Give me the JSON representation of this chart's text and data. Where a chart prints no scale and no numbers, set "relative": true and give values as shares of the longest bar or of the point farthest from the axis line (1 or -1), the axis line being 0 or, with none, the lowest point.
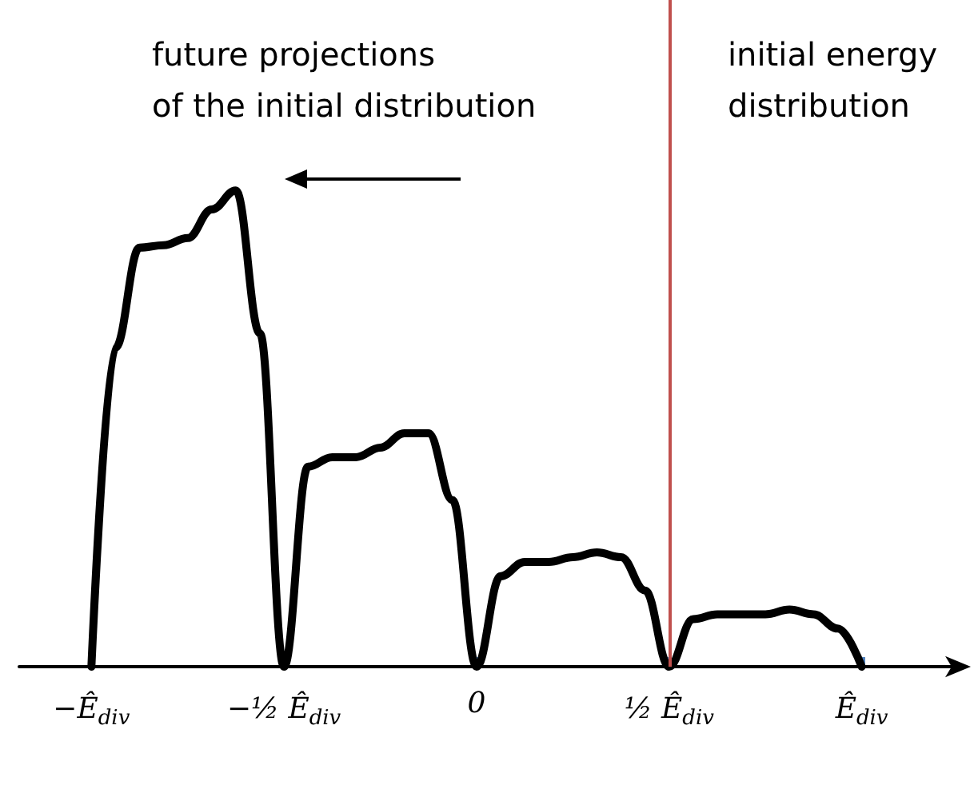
{
  "chart_data": {
    "type": "line",
    "relative": true,
    "marker": "none",
    "line_style": "solid",
    "grid": false,
    "tick_labels": "x",
    "categories": [
      null,
      null,
      null,
      "−Ê$_{div}$",
      null,
      null,
      null,
      null,
      null,
      null,
      null,
      "−½ Ê$_{div}$",
      null,
      null,
      null,
      null,
      null,
      null,
      null,
      "0",
      null,
      null,
      null,
      null,
      null,
      null,
      null,
      "½ Ê$_{div}$",
      null,
      null,
      null,
      null,
      null,
      null,
      null,
      "Ê$_{div}$",
      null,
      null,
      null,
      null
    ],
    "series": [
      {
        "color": "#000000",
        "values": [
          null,
          null,
          null,
          0,
          0.67,
          0.88,
          0.885,
          0.9,
          0.96,
          1,
          0.7,
          0,
          0.42,
          0.44,
          0.44,
          0.46,
          0.49,
          0.49,
          0.35,
          0,
          0.19,
          0.22,
          0.22,
          0.23,
          0.24,
          0.23,
          0.16,
          0,
          0.1,
          0.11,
          0.11,
          0.11,
          0.12,
          0.11,
          0.08,
          0,
          null,
          null,
          null,
          null
        ]
      }
    ],
    "ref_lines": [
      {
        "axis": "x",
        "value": "½ Ê$_{div}$",
        "color": "#c0504d"
      }
    ],
    "annotations": [
      "future projections\nof the initial distribution",
      "initial energy\ndistribution"
    ]
  }
}
